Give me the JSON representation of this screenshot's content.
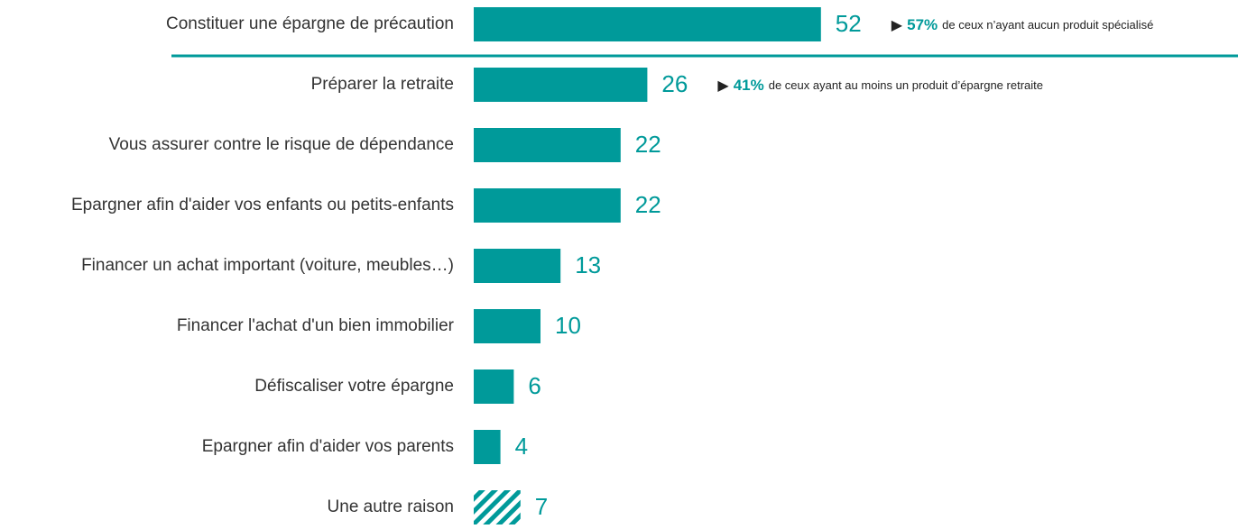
{
  "chart_data": {
    "type": "bar",
    "orientation": "horizontal",
    "categories": [
      "Constituer une épargne de précaution",
      "Préparer la retraite",
      "Vous assurer contre le risque de dépendance",
      "Epargner afin d'aider vos enfants ou petits-enfants",
      "Financer un achat important (voiture, meubles…)",
      "Financer l'achat d'un bien immobilier",
      "Défiscaliser votre épargne",
      "Epargner afin d'aider vos parents",
      "Une autre raison"
    ],
    "values": [
      52,
      26,
      22,
      22,
      13,
      10,
      6,
      4,
      7
    ],
    "color": "#009a9a",
    "hatched": [
      false,
      false,
      false,
      false,
      false,
      false,
      false,
      false,
      true
    ],
    "annotations": [
      {
        "category": 0,
        "marker": "▶",
        "highlight": "57%",
        "text": "de ceux n’ayant aucun produit spécialisé"
      },
      {
        "category": 1,
        "marker": "▶",
        "highlight": "41%",
        "text": "de ceux ayant au moins un produit d’épargne retraite"
      }
    ]
  }
}
